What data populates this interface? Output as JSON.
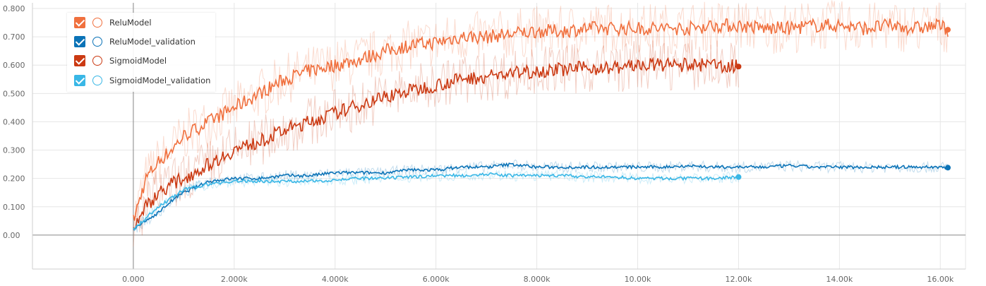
{
  "chart_data": {
    "type": "line",
    "title": "",
    "xlabel": "",
    "ylabel": "",
    "xlim": [
      -2000,
      16500
    ],
    "ylim": [
      -0.12,
      0.82
    ],
    "x_ticks": [
      0,
      2000,
      4000,
      6000,
      8000,
      10000,
      12000,
      14000,
      16000
    ],
    "x_tick_labels": [
      "0.000",
      "2.000k",
      "4.000k",
      "6.000k",
      "8.000k",
      "10.00k",
      "12.00k",
      "14.00k",
      "16.00k"
    ],
    "y_ticks": [
      0,
      0.1,
      0.2,
      0.3,
      0.4,
      0.5,
      0.6,
      0.7,
      0.8
    ],
    "y_tick_labels": [
      "0.00",
      "0.100",
      "0.200",
      "0.300",
      "0.400",
      "0.500",
      "0.600",
      "0.700",
      "0.800"
    ],
    "grid": true,
    "legend_position": "top-left",
    "series": [
      {
        "name": "ReluModel",
        "color": "#f0703e",
        "x": [
          0,
          250,
          500,
          750,
          1000,
          1500,
          2000,
          2500,
          3000,
          3500,
          4000,
          4500,
          5000,
          5500,
          6000,
          6500,
          7000,
          7500,
          8000,
          8500,
          9000,
          9500,
          10000,
          10500,
          11000,
          11500,
          12000,
          12500,
          13000,
          13500,
          14000,
          14500,
          15000,
          15500,
          16000,
          16150
        ],
        "y": [
          0.05,
          0.2,
          0.26,
          0.3,
          0.35,
          0.4,
          0.45,
          0.5,
          0.55,
          0.58,
          0.6,
          0.62,
          0.65,
          0.67,
          0.68,
          0.7,
          0.7,
          0.71,
          0.72,
          0.72,
          0.73,
          0.73,
          0.73,
          0.73,
          0.73,
          0.74,
          0.74,
          0.73,
          0.73,
          0.74,
          0.74,
          0.73,
          0.74,
          0.73,
          0.74,
          0.725
        ]
      },
      {
        "name": "ReluModel_validation",
        "color": "#0b73b7",
        "x": [
          0,
          250,
          500,
          750,
          1000,
          1500,
          2000,
          2500,
          3000,
          3500,
          4000,
          4500,
          5000,
          5500,
          6000,
          6500,
          7000,
          7500,
          8000,
          8500,
          9000,
          9500,
          10000,
          10500,
          11000,
          11500,
          12000,
          12500,
          13000,
          13500,
          14000,
          14500,
          15000,
          15500,
          16000,
          16150
        ],
        "y": [
          0.02,
          0.05,
          0.08,
          0.12,
          0.15,
          0.19,
          0.2,
          0.2,
          0.21,
          0.21,
          0.22,
          0.22,
          0.22,
          0.23,
          0.23,
          0.24,
          0.24,
          0.25,
          0.24,
          0.24,
          0.24,
          0.24,
          0.24,
          0.24,
          0.245,
          0.24,
          0.24,
          0.24,
          0.245,
          0.24,
          0.24,
          0.24,
          0.24,
          0.24,
          0.24,
          0.238
        ]
      },
      {
        "name": "SigmoidModel",
        "color": "#cb3a13",
        "x": [
          0,
          250,
          500,
          750,
          1000,
          1500,
          2000,
          2500,
          3000,
          3500,
          4000,
          4500,
          5000,
          5500,
          6000,
          6500,
          7000,
          7500,
          8000,
          8500,
          9000,
          9500,
          10000,
          10500,
          11000,
          11500,
          12000
        ],
        "y": [
          0.03,
          0.1,
          0.15,
          0.18,
          0.2,
          0.25,
          0.3,
          0.33,
          0.37,
          0.4,
          0.43,
          0.46,
          0.49,
          0.51,
          0.53,
          0.55,
          0.56,
          0.57,
          0.58,
          0.585,
          0.59,
          0.59,
          0.6,
          0.6,
          0.6,
          0.6,
          0.595
        ]
      },
      {
        "name": "SigmoidModel_validation",
        "color": "#39b7e6",
        "x": [
          0,
          250,
          500,
          750,
          1000,
          1500,
          2000,
          2500,
          3000,
          3500,
          4000,
          4500,
          5000,
          5500,
          6000,
          6500,
          7000,
          7500,
          8000,
          8500,
          9000,
          9500,
          10000,
          10500,
          11000,
          11500,
          12000
        ],
        "y": [
          0.02,
          0.06,
          0.1,
          0.13,
          0.16,
          0.18,
          0.19,
          0.19,
          0.19,
          0.19,
          0.195,
          0.2,
          0.2,
          0.205,
          0.21,
          0.21,
          0.215,
          0.21,
          0.21,
          0.21,
          0.205,
          0.205,
          0.2,
          0.2,
          0.2,
          0.2,
          0.205
        ]
      }
    ]
  }
}
